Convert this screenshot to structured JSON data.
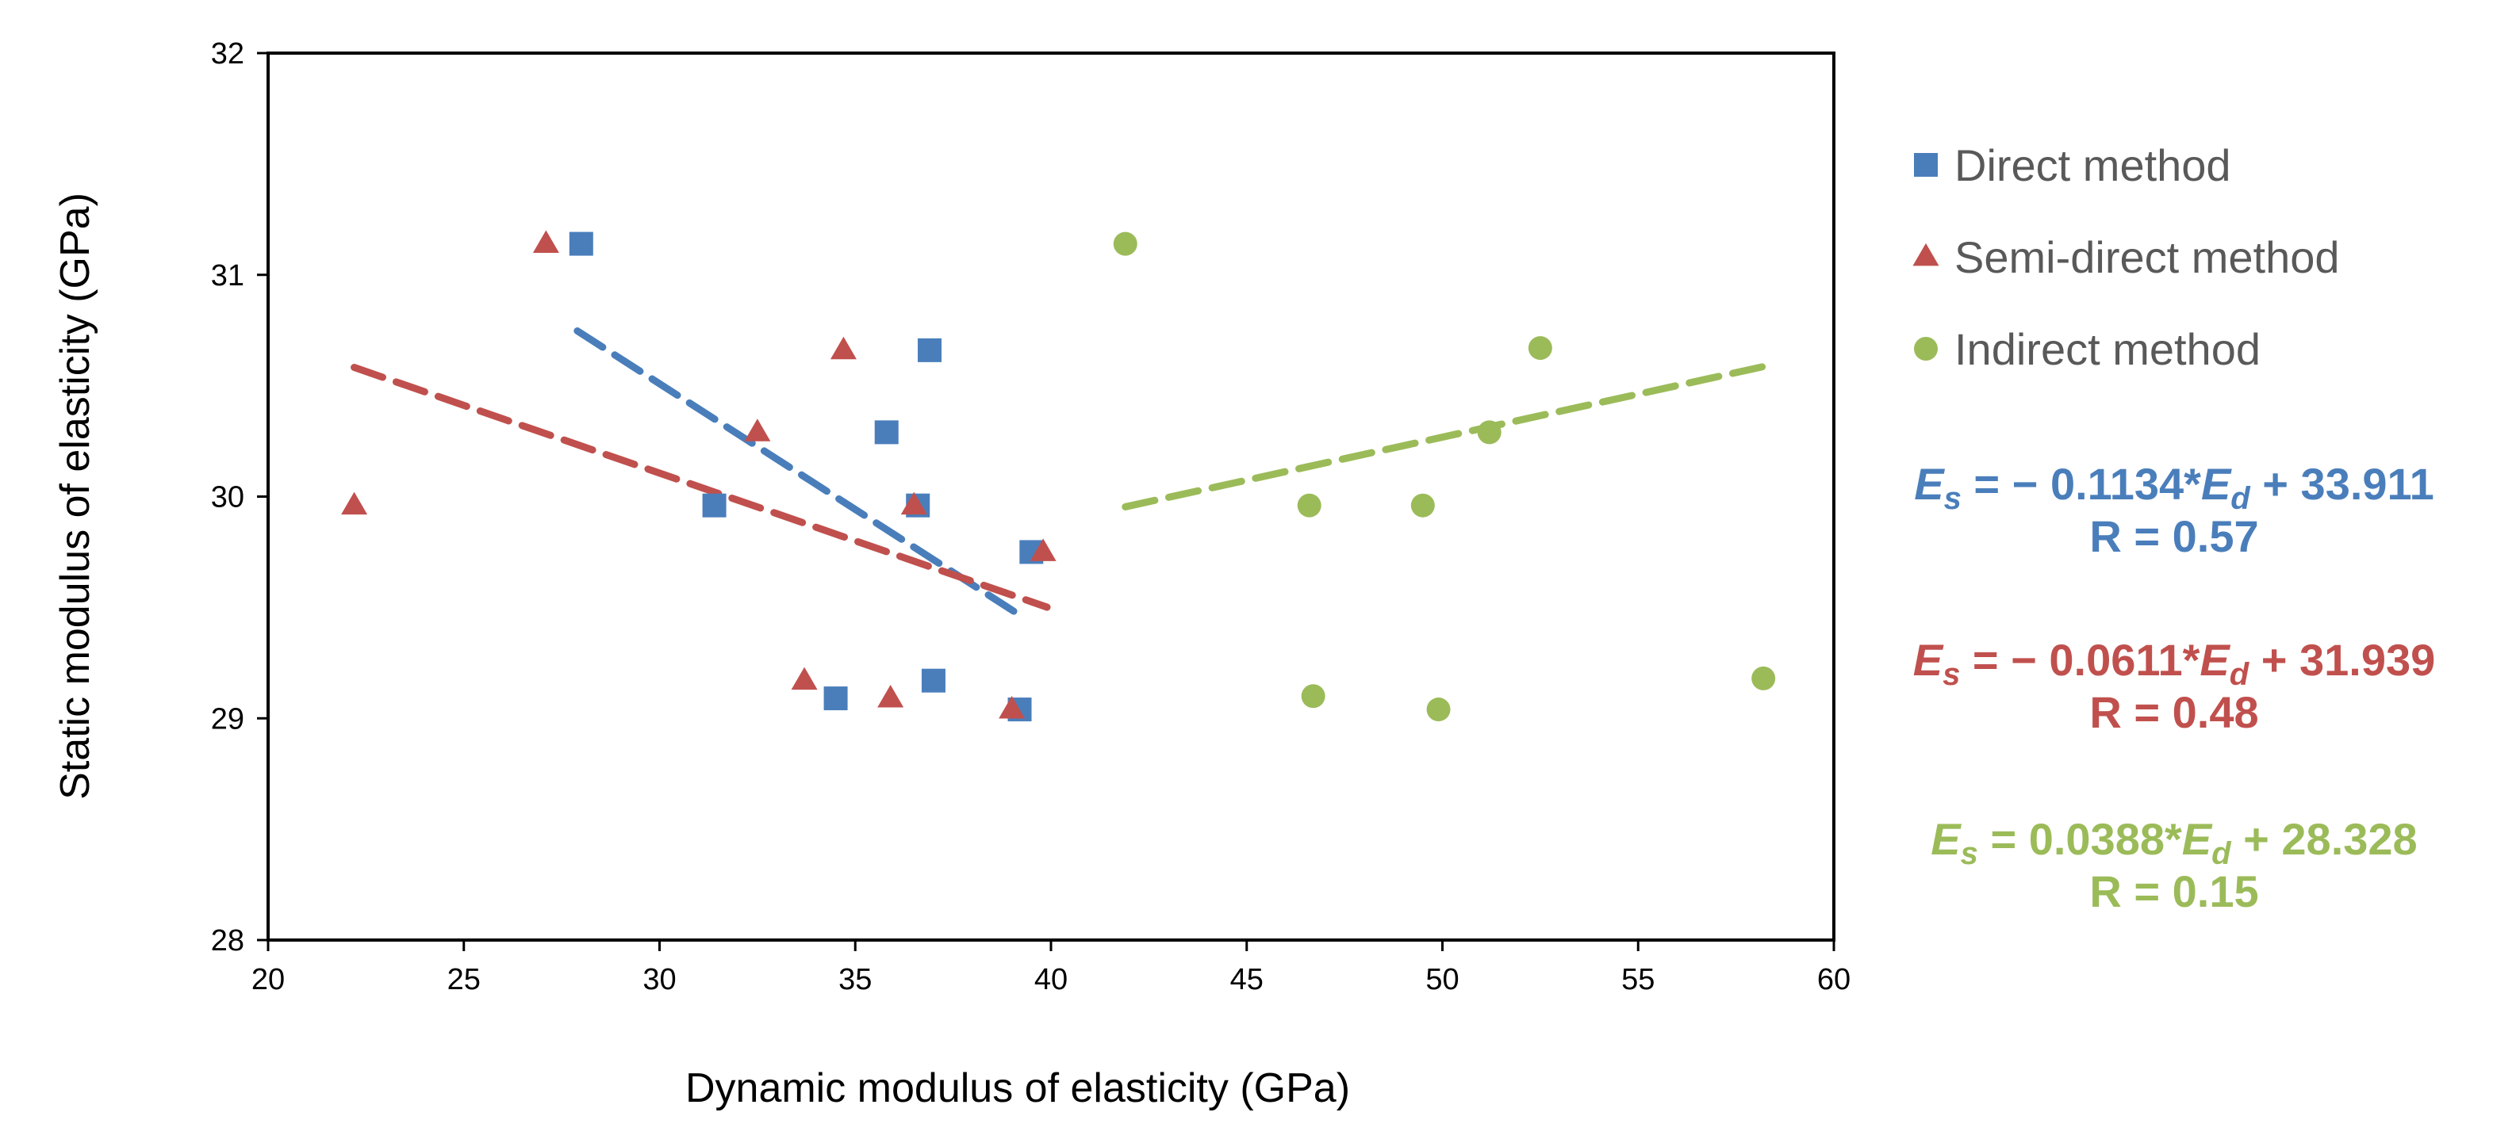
{
  "chart_data": {
    "type": "scatter",
    "xlabel": "Dynamic modulus of elasticity (GPa)",
    "ylabel": "Static modulus of elasticity (GPa)",
    "xlim": [
      20,
      60
    ],
    "ylim": [
      28,
      32
    ],
    "x_ticks": [
      "20",
      "25",
      "30",
      "35",
      "40",
      "45",
      "50",
      "55",
      "60"
    ],
    "y_ticks": [
      "28",
      "29",
      "30",
      "31",
      "32"
    ],
    "grid": false,
    "legend_position": "right",
    "series": [
      {
        "name": "Direct method",
        "marker": "square",
        "color": "#4a7ebb",
        "points": [
          {
            "x": 28.0,
            "y": 31.14
          },
          {
            "x": 31.4,
            "y": 29.96
          },
          {
            "x": 34.5,
            "y": 29.09
          },
          {
            "x": 35.8,
            "y": 30.29
          },
          {
            "x": 36.6,
            "y": 29.96
          },
          {
            "x": 36.9,
            "y": 30.66
          },
          {
            "x": 37.0,
            "y": 29.17
          },
          {
            "x": 39.2,
            "y": 29.04
          },
          {
            "x": 39.5,
            "y": 29.75
          }
        ],
        "trendline": {
          "x_range": [
            27.9,
            39.3
          ],
          "slope": -0.1134,
          "intercept": 33.911,
          "equation": {
            "lhs_var": "E",
            "lhs_sub": "s",
            "mid": " = − 0.1134*",
            "rhs_var": "E",
            "rhs_sub": "d",
            "tail": " + 33.911"
          },
          "r_text": "R = 0.57"
        }
      },
      {
        "name": "Semi-direct method",
        "marker": "triangle",
        "color": "#c0504d",
        "points": [
          {
            "x": 22.2,
            "y": 29.96
          },
          {
            "x": 27.1,
            "y": 31.14
          },
          {
            "x": 32.5,
            "y": 30.29
          },
          {
            "x": 33.7,
            "y": 29.17
          },
          {
            "x": 34.7,
            "y": 30.66
          },
          {
            "x": 35.9,
            "y": 29.09
          },
          {
            "x": 36.5,
            "y": 29.96
          },
          {
            "x": 39.0,
            "y": 29.04
          },
          {
            "x": 39.8,
            "y": 29.75
          }
        ],
        "trendline": {
          "x_range": [
            22.2,
            39.9
          ],
          "slope": -0.0611,
          "intercept": 31.939,
          "equation": {
            "lhs_var": "E",
            "lhs_sub": "s",
            "mid": " = − 0.0611*",
            "rhs_var": "E",
            "rhs_sub": "d",
            "tail": " + 31.939"
          },
          "r_text": "R = 0.48"
        }
      },
      {
        "name": "Indirect method",
        "marker": "circle",
        "color": "#9bbb59",
        "points": [
          {
            "x": 41.9,
            "y": 31.14
          },
          {
            "x": 46.6,
            "y": 29.96
          },
          {
            "x": 46.7,
            "y": 29.1
          },
          {
            "x": 49.5,
            "y": 29.96
          },
          {
            "x": 49.9,
            "y": 29.04
          },
          {
            "x": 51.2,
            "y": 30.29
          },
          {
            "x": 52.5,
            "y": 30.67
          },
          {
            "x": 58.2,
            "y": 29.18
          }
        ],
        "trendline": {
          "x_range": [
            41.9,
            58.2
          ],
          "slope": 0.0388,
          "intercept": 28.328,
          "equation": {
            "lhs_var": "E",
            "lhs_sub": "s",
            "mid": " = 0.0388*",
            "rhs_var": "E",
            "rhs_sub": "d",
            "tail": " + 28.328"
          },
          "r_text": "R = 0.15"
        }
      }
    ]
  }
}
